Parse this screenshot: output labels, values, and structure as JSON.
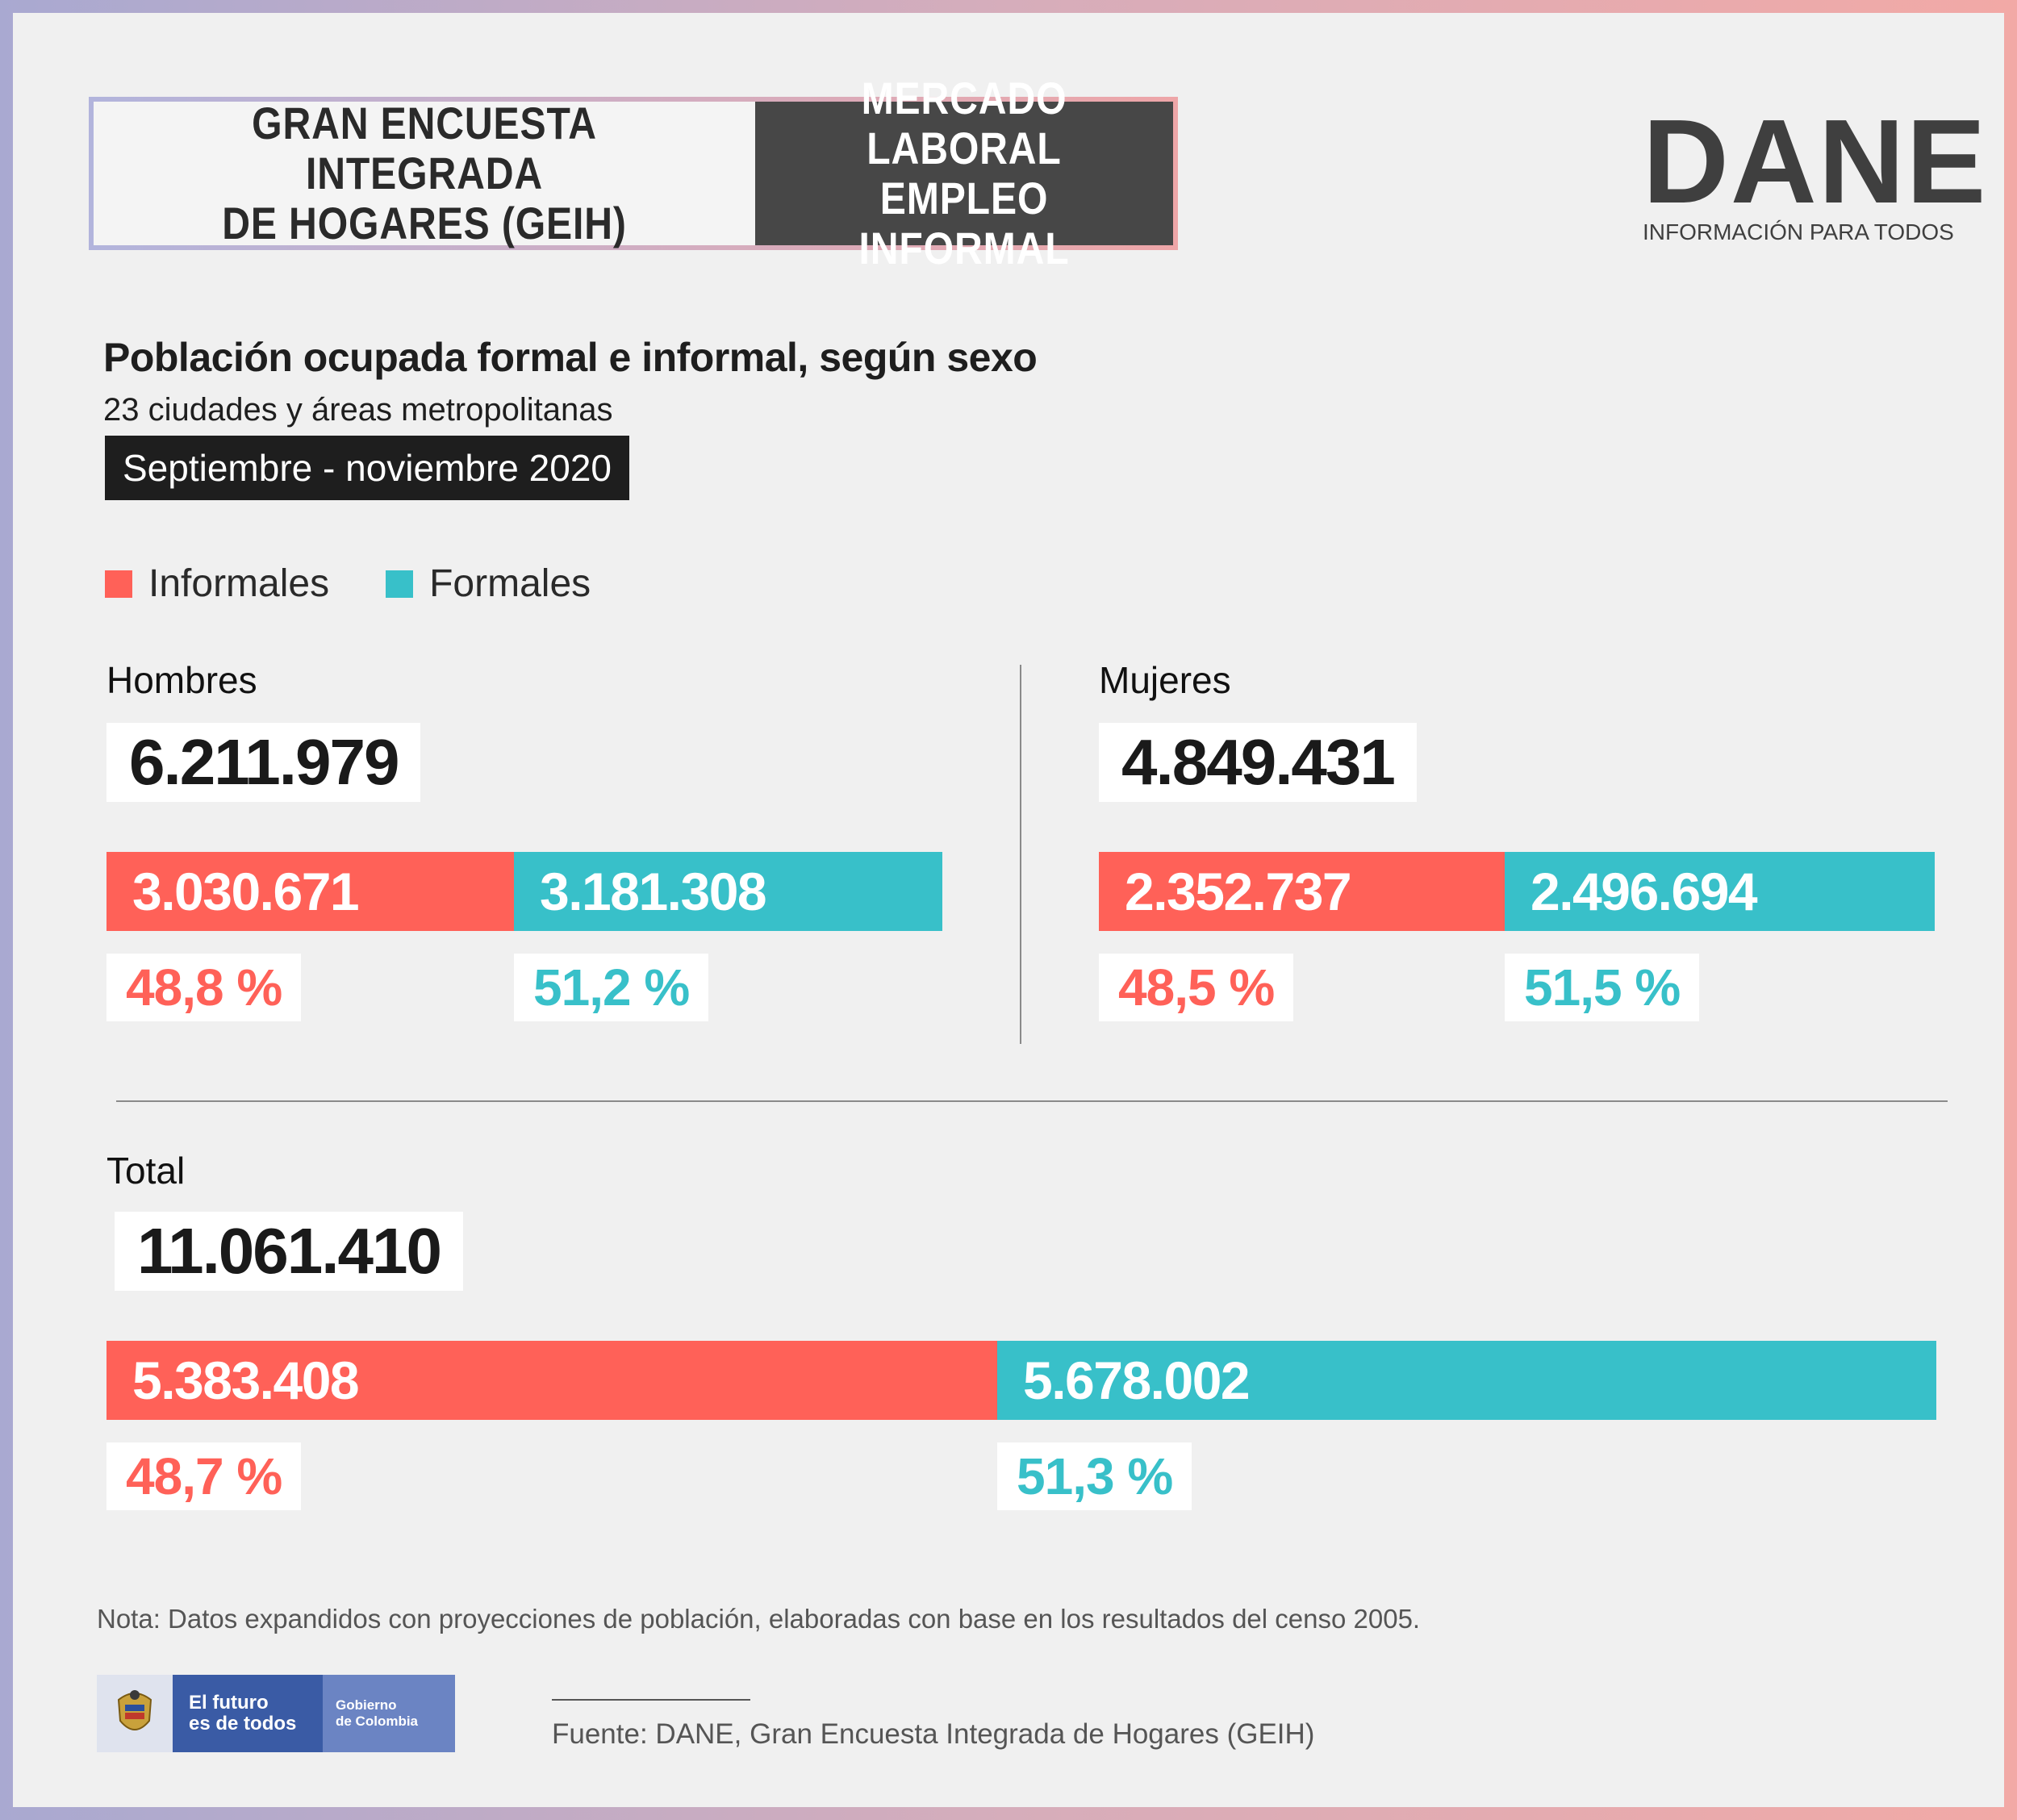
{
  "header": {
    "left_title": "GRAN ENCUESTA INTEGRADA\nDE HOGARES (GEIH)",
    "right_title": "MERCADO LABORAL\nEMPLEO INFORMAL"
  },
  "brand": {
    "name": "DANE",
    "tagline": "INFORMACIÓN PARA TODOS"
  },
  "title": "Población ocupada formal e informal, según sexo",
  "subtitle": "23 ciudades y áreas metropolitanas",
  "period": "Septiembre - noviembre 2020",
  "colors": {
    "informales": "#ff6158",
    "formales": "#38c0c9"
  },
  "chart_data": {
    "type": "bar",
    "orientation": "horizontal-stacked-100",
    "legend": [
      "Informales",
      "Formales"
    ],
    "groups": [
      {
        "label": "Hombres",
        "total": "6.211.979",
        "informales": {
          "value": 3030671,
          "value_label": "3.030.671",
          "pct": 48.8,
          "pct_label": "48,8 %"
        },
        "formales": {
          "value": 3181308,
          "value_label": "3.181.308",
          "pct": 51.2,
          "pct_label": "51,2 %"
        }
      },
      {
        "label": "Mujeres",
        "total": "4.849.431",
        "informales": {
          "value": 2352737,
          "value_label": "2.352.737",
          "pct": 48.5,
          "pct_label": "48,5 %"
        },
        "formales": {
          "value": 2496694,
          "value_label": "2.496.694",
          "pct": 51.5,
          "pct_label": "51,5 %"
        }
      },
      {
        "label": "Total",
        "total": "11.061.410",
        "informales": {
          "value": 5383408,
          "value_label": "5.383.408",
          "pct": 48.7,
          "pct_label": "48,7 %"
        },
        "formales": {
          "value": 5678002,
          "value_label": "5.678.002",
          "pct": 51.3,
          "pct_label": "51,3 %"
        }
      }
    ]
  },
  "note": "Nota: Datos expandidos con proyecciones de población, elaboradas con base en los resultados del censo 2005.",
  "gov": {
    "main": "El futuro\nes de todos",
    "sub": "Gobierno\nde Colombia"
  },
  "source": "Fuente: DANE, Gran Encuesta Integrada de Hogares (GEIH)"
}
